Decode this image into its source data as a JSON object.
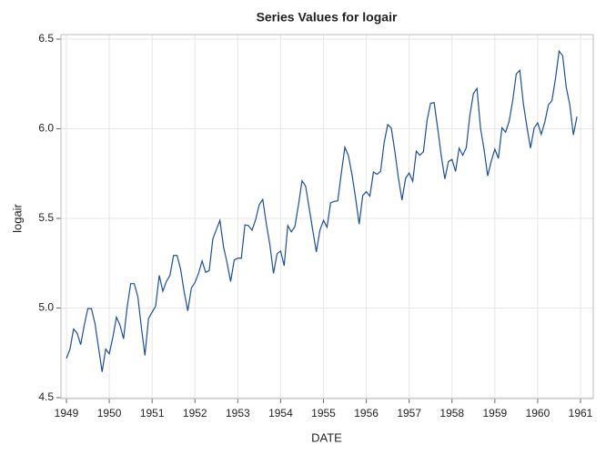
{
  "chart_data": {
    "type": "line",
    "title": "Series Values for logair",
    "x_label": "DATE",
    "y_label": "logair",
    "x": [
      1949,
      1949.083,
      1949.167,
      1949.25,
      1949.333,
      1949.417,
      1949.5,
      1949.583,
      1949.667,
      1949.75,
      1949.833,
      1949.917,
      1950,
      1950.083,
      1950.167,
      1950.25,
      1950.333,
      1950.417,
      1950.5,
      1950.583,
      1950.667,
      1950.75,
      1950.833,
      1950.917,
      1951,
      1951.083,
      1951.167,
      1951.25,
      1951.333,
      1951.417,
      1951.5,
      1951.583,
      1951.667,
      1951.75,
      1951.833,
      1951.917,
      1952,
      1952.083,
      1952.167,
      1952.25,
      1952.333,
      1952.417,
      1952.5,
      1952.583,
      1952.667,
      1952.75,
      1952.833,
      1952.917,
      1953,
      1953.083,
      1953.167,
      1953.25,
      1953.333,
      1953.417,
      1953.5,
      1953.583,
      1953.667,
      1953.75,
      1953.833,
      1953.917,
      1954,
      1954.083,
      1954.167,
      1954.25,
      1954.333,
      1954.417,
      1954.5,
      1954.583,
      1954.667,
      1954.75,
      1954.833,
      1954.917,
      1955,
      1955.083,
      1955.167,
      1955.25,
      1955.333,
      1955.417,
      1955.5,
      1955.583,
      1955.667,
      1955.75,
      1955.833,
      1955.917,
      1956,
      1956.083,
      1956.167,
      1956.25,
      1956.333,
      1956.417,
      1956.5,
      1956.583,
      1956.667,
      1956.75,
      1956.833,
      1956.917,
      1957,
      1957.083,
      1957.167,
      1957.25,
      1957.333,
      1957.417,
      1957.5,
      1957.583,
      1957.667,
      1957.75,
      1957.833,
      1957.917,
      1958,
      1958.083,
      1958.167,
      1958.25,
      1958.333,
      1958.417,
      1958.5,
      1958.583,
      1958.667,
      1958.75,
      1958.833,
      1958.917,
      1959,
      1959.083,
      1959.167,
      1959.25,
      1959.333,
      1959.417,
      1959.5,
      1959.583,
      1959.667,
      1959.75,
      1959.833,
      1959.917,
      1960,
      1960.083,
      1960.167,
      1960.25,
      1960.333,
      1960.417,
      1960.5,
      1960.583,
      1960.667,
      1960.75,
      1960.833,
      1960.917
    ],
    "series": [
      {
        "color": "#1f4f8f",
        "values": [
          4.719,
          4.771,
          4.883,
          4.86,
          4.796,
          4.905,
          4.997,
          4.997,
          4.913,
          4.779,
          4.644,
          4.771,
          4.745,
          4.836,
          4.949,
          4.905,
          4.828,
          5.004,
          5.136,
          5.136,
          5.063,
          4.89,
          4.736,
          4.942,
          4.977,
          5.011,
          5.182,
          5.094,
          5.148,
          5.182,
          5.293,
          5.293,
          5.215,
          5.088,
          4.984,
          5.112,
          5.142,
          5.193,
          5.263,
          5.199,
          5.209,
          5.385,
          5.438,
          5.489,
          5.342,
          5.252,
          5.148,
          5.268,
          5.278,
          5.278,
          5.464,
          5.46,
          5.434,
          5.493,
          5.576,
          5.606,
          5.468,
          5.352,
          5.193,
          5.303,
          5.318,
          5.236,
          5.46,
          5.425,
          5.455,
          5.576,
          5.71,
          5.68,
          5.557,
          5.434,
          5.313,
          5.434,
          5.489,
          5.451,
          5.587,
          5.595,
          5.598,
          5.753,
          5.897,
          5.849,
          5.743,
          5.613,
          5.468,
          5.628,
          5.649,
          5.624,
          5.759,
          5.746,
          5.762,
          5.924,
          6.023,
          6.004,
          5.872,
          5.724,
          5.602,
          5.724,
          5.753,
          5.707,
          5.875,
          5.852,
          5.872,
          6.045,
          6.142,
          6.146,
          6.001,
          5.849,
          5.72,
          5.817,
          5.829,
          5.762,
          5.892,
          5.852,
          5.894,
          6.075,
          6.196,
          6.225,
          6.001,
          5.883,
          5.737,
          5.82,
          5.886,
          5.835,
          6.006,
          5.981,
          6.04,
          6.157,
          6.306,
          6.326,
          6.138,
          6.009,
          5.892,
          6.004,
          6.033,
          5.969,
          6.038,
          6.133,
          6.157,
          6.282,
          6.433,
          6.407,
          6.231,
          6.133,
          5.966,
          6.068
        ]
      }
    ],
    "xlim": [
      1949,
      1961
    ],
    "xticks": [
      1949,
      1950,
      1951,
      1952,
      1953,
      1954,
      1955,
      1956,
      1957,
      1958,
      1959,
      1960,
      1961
    ],
    "ylim": [
      4.5,
      6.5
    ],
    "yticks": [
      {
        "value": 4.5,
        "label": "4.5"
      },
      {
        "value": 5,
        "label": "5.0"
      },
      {
        "value": 5.5,
        "label": "5.5"
      },
      {
        "value": 6,
        "label": "6.0"
      },
      {
        "value": 6.5,
        "label": "6.5"
      }
    ],
    "grid": true
  }
}
